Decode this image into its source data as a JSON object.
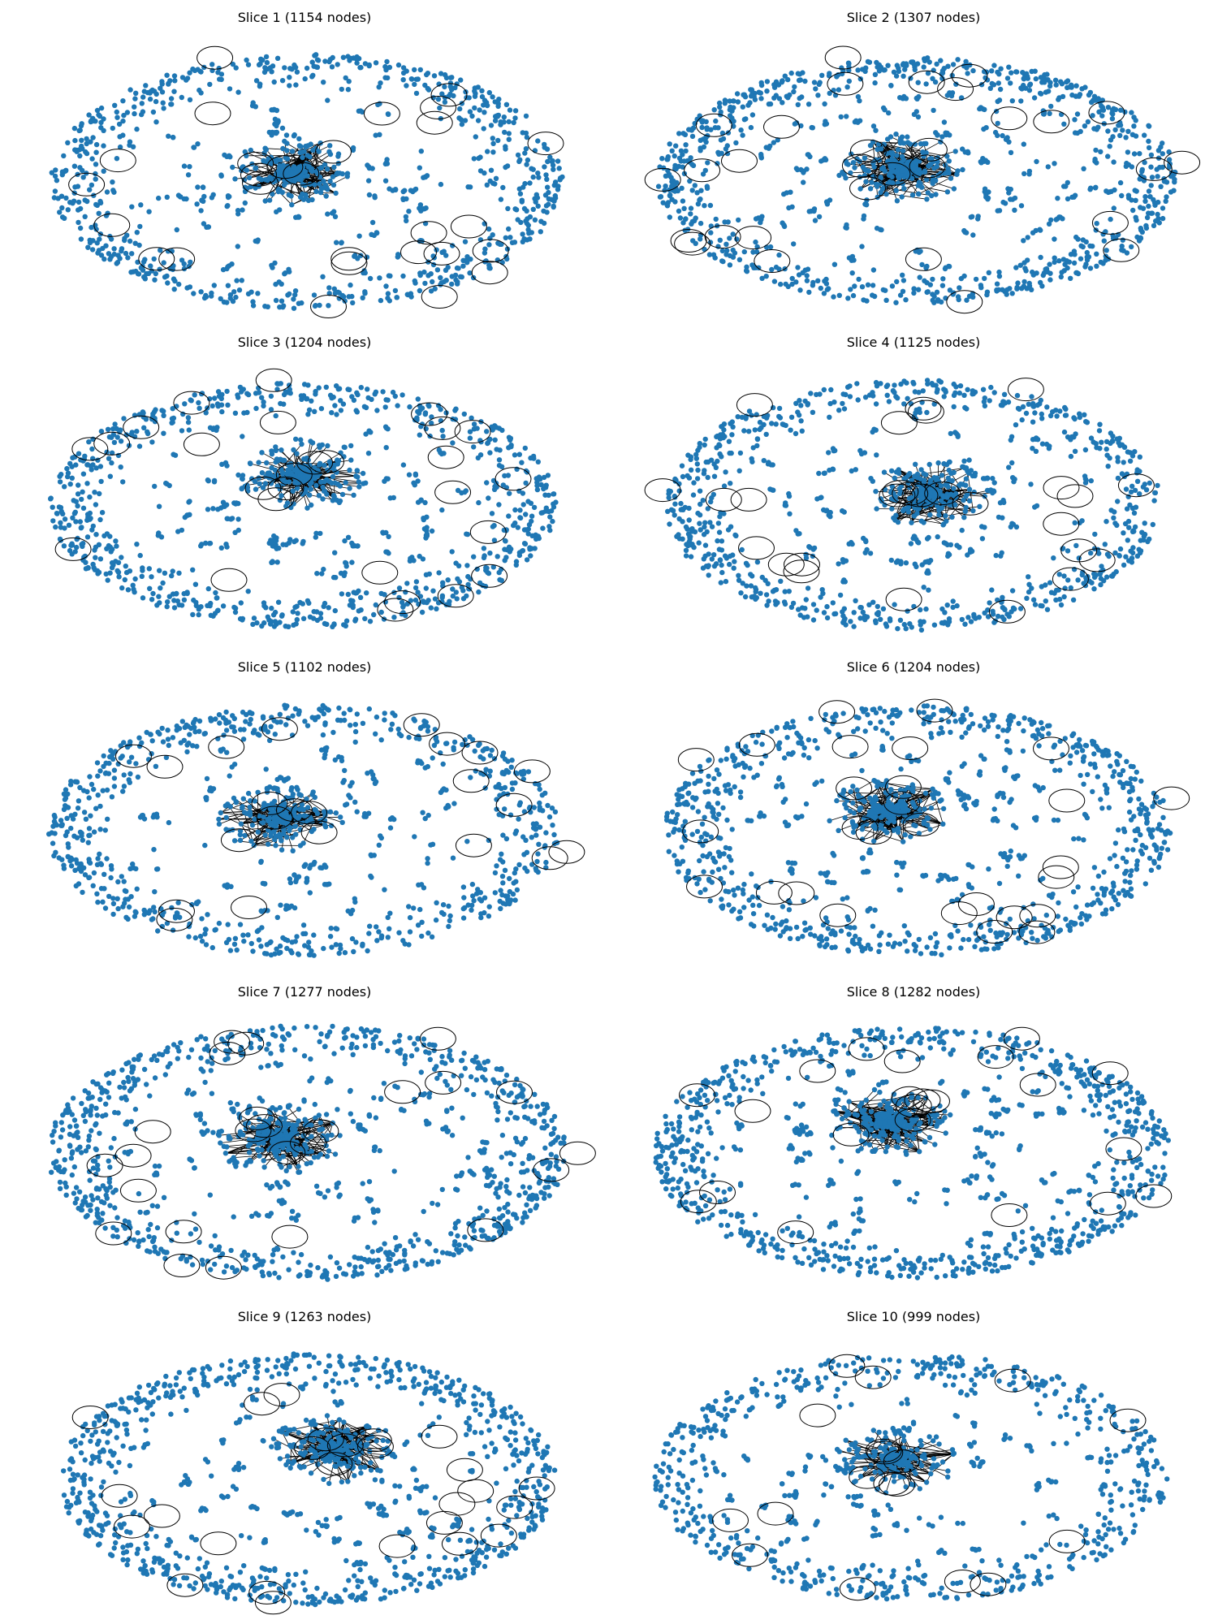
{
  "figure": {
    "node_color": "#1f77b4",
    "edge_color": "#000000",
    "panels": [
      {
        "title": "Slice 1 (1154 nodes)",
        "nodes": 1154,
        "self_loops": 28
      },
      {
        "title": "Slice 2 (1307 nodes)",
        "nodes": 1307,
        "self_loops": 30
      },
      {
        "title": "Slice 3 (1204 nodes)",
        "nodes": 1204,
        "self_loops": 27
      },
      {
        "title": "Slice 4 (1125 nodes)",
        "nodes": 1125,
        "self_loops": 27
      },
      {
        "title": "Slice 5 (1102 nodes)",
        "nodes": 1102,
        "self_loops": 22
      },
      {
        "title": "Slice 6 (1204 nodes)",
        "nodes": 1204,
        "self_loops": 28
      },
      {
        "title": "Slice 7 (1277 nodes)",
        "nodes": 1277,
        "self_loops": 25
      },
      {
        "title": "Slice 8 (1282 nodes)",
        "nodes": 1282,
        "self_loops": 22
      },
      {
        "title": "Slice 9 (1263 nodes)",
        "nodes": 1263,
        "self_loops": 26
      },
      {
        "title": "Slice 10 (999 nodes)",
        "nodes": 999,
        "self_loops": 18
      }
    ]
  }
}
